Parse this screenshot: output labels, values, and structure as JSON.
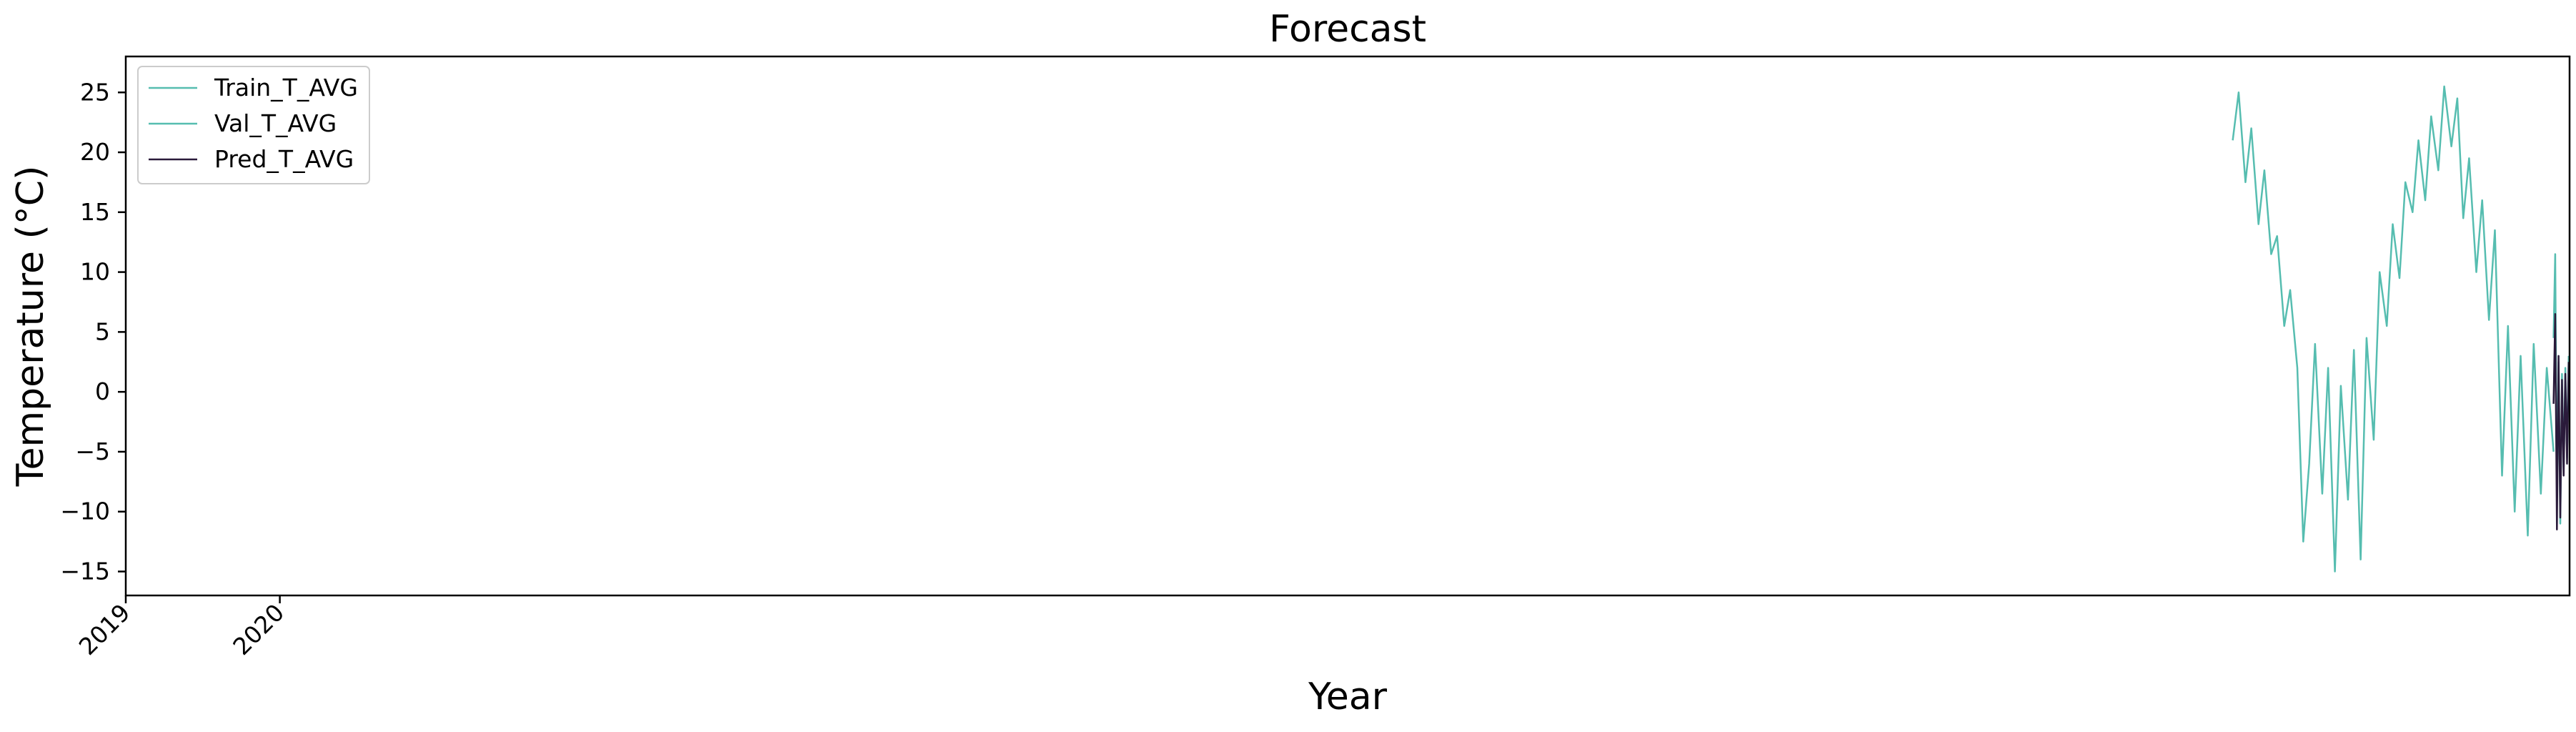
{
  "chart_data": {
    "type": "line",
    "title": "Forecast",
    "xlabel": "Year",
    "ylabel": "Temperature (°C)",
    "xlim": [
      "2019-01-01",
      "2034-11-08"
    ],
    "ylim": [
      -17,
      28
    ],
    "xticks": [
      "2019",
      "2020"
    ],
    "yticks": [
      -15,
      -10,
      -5,
      0,
      5,
      10,
      15,
      20,
      25
    ],
    "grid": false,
    "legend_position": "top-left",
    "series": [
      {
        "name": "Train_T_AVG",
        "color": "#56bdb0",
        "x": [
          "2032-09-01",
          "2032-09-15",
          "2032-10-01",
          "2032-10-15",
          "2032-11-01",
          "2032-11-15",
          "2032-12-01",
          "2032-12-15",
          "2033-01-01",
          "2033-01-15",
          "2033-02-01",
          "2033-02-15",
          "2033-03-01",
          "2033-03-15",
          "2033-04-01",
          "2033-04-15",
          "2033-05-01",
          "2033-05-15",
          "2033-06-01",
          "2033-06-15",
          "2033-07-01",
          "2033-07-15",
          "2033-08-01",
          "2033-08-15",
          "2033-09-01",
          "2033-09-15",
          "2033-10-01",
          "2033-10-15",
          "2033-11-01",
          "2033-11-15",
          "2033-12-01",
          "2033-12-15",
          "2034-01-01",
          "2034-01-15",
          "2034-02-01",
          "2034-02-15",
          "2034-03-01",
          "2034-03-15",
          "2034-04-01",
          "2034-04-15",
          "2034-05-01",
          "2034-05-15",
          "2034-06-01",
          "2034-06-15",
          "2034-07-01",
          "2034-07-15",
          "2034-08-01",
          "2034-08-15",
          "2034-09-01",
          "2034-09-15",
          "2034-10-01"
        ],
        "values": [
          21.0,
          25.0,
          17.5,
          22.0,
          14.0,
          18.5,
          11.5,
          13.0,
          5.5,
          8.5,
          2.0,
          -12.5,
          -6.0,
          4.0,
          -8.5,
          2.0,
          -15.0,
          0.5,
          -9.0,
          3.5,
          -14.0,
          4.5,
          -4.0,
          10.0,
          5.5,
          14.0,
          9.5,
          17.5,
          15.0,
          21.0,
          16.0,
          23.0,
          18.5,
          25.5,
          20.5,
          24.5,
          14.5,
          19.5,
          10.0,
          16.0,
          6.0,
          13.5,
          -7.0,
          5.5,
          -10.0,
          3.0,
          -12.0,
          4.0,
          -8.5,
          2.0,
          -5.0
        ]
      },
      {
        "name": "Val_T_AVG",
        "color": "#56bdb0",
        "x": [
          "2034-10-01",
          "2034-10-05",
          "2034-10-09",
          "2034-10-13",
          "2034-10-17",
          "2034-10-21",
          "2034-10-25",
          "2034-10-29",
          "2034-11-02",
          "2034-11-06"
        ],
        "values": [
          4.5,
          11.5,
          -9.0,
          2.5,
          -11.0,
          1.5,
          -6.5,
          2.0,
          -5.5,
          3.0
        ]
      },
      {
        "name": "Pred_T_AVG",
        "color": "#2a1a3a",
        "x": [
          "2034-10-01",
          "2034-10-05",
          "2034-10-09",
          "2034-10-13",
          "2034-10-17",
          "2034-10-21",
          "2034-10-25",
          "2034-10-29",
          "2034-11-02",
          "2034-11-06"
        ],
        "values": [
          -1.0,
          6.5,
          -11.5,
          3.0,
          -10.5,
          1.0,
          -7.0,
          1.5,
          -6.0,
          2.5
        ]
      }
    ]
  }
}
